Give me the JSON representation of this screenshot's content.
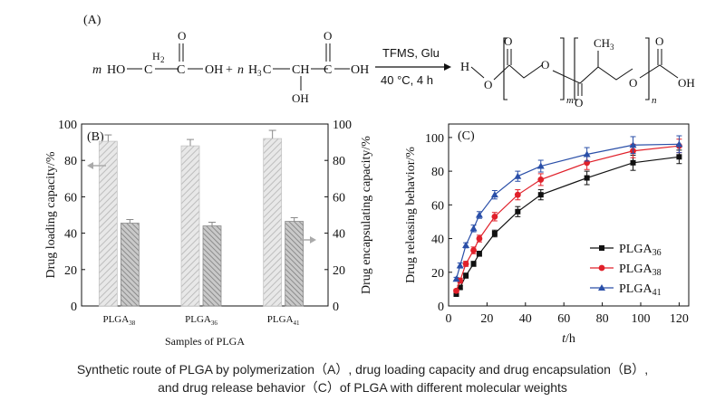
{
  "panel_a": {
    "label": "(A)",
    "reactant1": {
      "coef": "m",
      "prefix": "HO",
      "ch2": "C",
      "ch2_h": "H",
      "ch2_sub": "2",
      "o": "O",
      "suffix": "OH"
    },
    "plus": "+",
    "reactant2": {
      "coef": "n",
      "h3c": "H",
      "h3c_sub": "3",
      "h3c_c": "C",
      "o": "O",
      "oh_sub": "OH",
      "suffix": "OH"
    },
    "arrow_top": "TFMS, Glu",
    "arrow_bottom": "40 °C, 4 h",
    "product": {
      "h": "H",
      "o_atoms": [
        "O",
        "O",
        "O",
        "O",
        "O",
        "O"
      ],
      "ch3": "CH",
      "ch3_sub": "3",
      "sub_m": "m",
      "sub_n": "n",
      "oh": "OH"
    }
  },
  "chart_data": [
    {
      "panel": "(B)",
      "type": "bar",
      "categories": [
        "PLGA38",
        "PLGA36",
        "PLGA41"
      ],
      "category_labels": [
        {
          "main": "PLGA",
          "sub": "38"
        },
        {
          "main": "PLGA",
          "sub": "36"
        },
        {
          "main": "PLGA",
          "sub": "41"
        }
      ],
      "series": [
        {
          "name": "Drug loading capacity",
          "axis": "left",
          "values": [
            90.5,
            88,
            92
          ],
          "errors": [
            3.5,
            3.5,
            4.5
          ],
          "color": "#cfcfcf"
        },
        {
          "name": "Drug encapsulating capacity",
          "axis": "right",
          "values": [
            45.5,
            44,
            46.5
          ],
          "errors": [
            2,
            2,
            2
          ],
          "color": "#9a9a9a"
        }
      ],
      "xlabel": "Samples of PLGA",
      "ylabel_left": "Drug loading capacity/%",
      "ylabel_right": "Drug encapsulating capacity/%",
      "ylim": [
        0,
        100
      ],
      "yticks": [
        "0",
        "20",
        "40",
        "60",
        "80",
        "100"
      ],
      "grid": false
    },
    {
      "panel": "(C)",
      "type": "line",
      "xlabel_italic": "t",
      "xlabel_unit": "/h",
      "ylabel": "Drug releasing behavior/%",
      "xlim": [
        0,
        125
      ],
      "ylim": [
        0,
        108
      ],
      "xticks": [
        "0",
        "20",
        "40",
        "60",
        "80",
        "100",
        "120"
      ],
      "yticks": [
        "0",
        "20",
        "40",
        "60",
        "80",
        "100"
      ],
      "legend_position": "bottom-right",
      "grid": false,
      "series": [
        {
          "name": "PLGA36",
          "label_main": "PLGA",
          "label_sub": "36",
          "color": "#111111",
          "marker": "square",
          "x": [
            4,
            6,
            9,
            13,
            16,
            24,
            36,
            48,
            72,
            96,
            120
          ],
          "y": [
            7,
            11,
            18,
            25,
            31,
            43,
            56,
            66,
            76,
            85,
            88.5
          ],
          "err": [
            1,
            1,
            1.5,
            1.5,
            1.5,
            2,
            3,
            3,
            4,
            4.5,
            4
          ]
        },
        {
          "name": "PLGA38",
          "label_main": "PLGA",
          "label_sub": "38",
          "color": "#e0202a",
          "marker": "circle",
          "x": [
            4,
            6,
            9,
            13,
            16,
            24,
            36,
            48,
            72,
            96,
            120
          ],
          "y": [
            9,
            15,
            25,
            33,
            40,
            53,
            66,
            75,
            85,
            92,
            95
          ],
          "err": [
            1,
            1.5,
            1.5,
            2,
            2,
            2.5,
            3,
            3.5,
            4,
            4,
            4
          ]
        },
        {
          "name": "PLGA41",
          "label_main": "PLGA",
          "label_sub": "41",
          "color": "#2a4fa8",
          "marker": "triangle",
          "x": [
            4,
            6,
            9,
            13,
            16,
            24,
            36,
            48,
            72,
            96,
            120
          ],
          "y": [
            16,
            24,
            36,
            46,
            54,
            66,
            77,
            83,
            90,
            95.5,
            96
          ],
          "err": [
            1,
            1.5,
            1.5,
            2,
            2,
            2.5,
            3,
            3.5,
            4,
            5,
            5
          ]
        }
      ]
    }
  ],
  "caption": {
    "line1": "Synthetic route of PLGA by polymerization（A）, drug loading capacity and drug encapsulation（B）,",
    "line2": "and drug release behavior（C）of PLGA with different molecular weights"
  }
}
